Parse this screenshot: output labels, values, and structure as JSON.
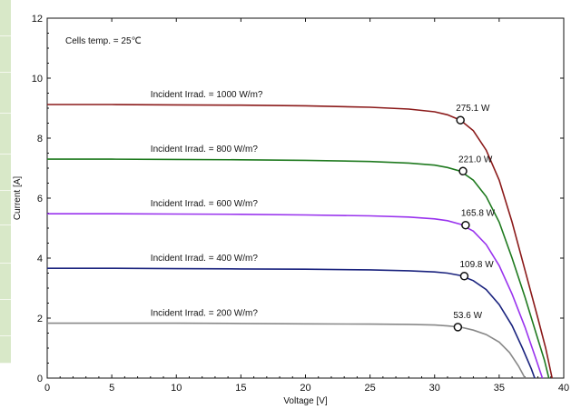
{
  "chart_data": {
    "type": "line",
    "title": "",
    "xlabel": "Voltage [V]",
    "ylabel": "Current [A]",
    "xlim": [
      0,
      40
    ],
    "ylim": [
      0,
      12
    ],
    "xticks": [
      0,
      5,
      10,
      15,
      20,
      25,
      30,
      35,
      40
    ],
    "yticks": [
      0,
      2,
      4,
      6,
      8,
      10,
      12
    ],
    "grid": false,
    "annotation": "Cells temp. = 25℃",
    "series": [
      {
        "name": "Incident Irrad. = 1000 W/m?",
        "color": "#8b1a1a",
        "mpp_label": "275.1 W",
        "mpp": [
          32.0,
          8.6
        ],
        "points": [
          [
            0,
            9.12
          ],
          [
            5,
            9.12
          ],
          [
            10,
            9.11
          ],
          [
            15,
            9.1
          ],
          [
            20,
            9.08
          ],
          [
            25,
            9.03
          ],
          [
            28,
            8.97
          ],
          [
            30,
            8.88
          ],
          [
            31,
            8.78
          ],
          [
            32,
            8.6
          ],
          [
            33,
            8.25
          ],
          [
            34,
            7.6
          ],
          [
            35,
            6.6
          ],
          [
            36,
            5.2
          ],
          [
            37,
            3.6
          ],
          [
            38,
            2.0
          ],
          [
            38.6,
            1.0
          ],
          [
            39.1,
            0
          ]
        ]
      },
      {
        "name": "Incident Irrad. = 800 W/m?",
        "color": "#1f7a1f",
        "mpp_label": "221.0 W",
        "mpp": [
          32.2,
          6.9
        ],
        "points": [
          [
            0,
            7.3
          ],
          [
            5,
            7.3
          ],
          [
            10,
            7.29
          ],
          [
            15,
            7.28
          ],
          [
            20,
            7.26
          ],
          [
            25,
            7.22
          ],
          [
            28,
            7.17
          ],
          [
            30,
            7.1
          ],
          [
            31,
            7.02
          ],
          [
            32,
            6.9
          ],
          [
            33,
            6.6
          ],
          [
            34,
            6.05
          ],
          [
            35,
            5.2
          ],
          [
            36,
            4.0
          ],
          [
            37,
            2.7
          ],
          [
            38,
            1.3
          ],
          [
            38.5,
            0.6
          ],
          [
            38.85,
            0
          ]
        ]
      },
      {
        "name": "Incident Irrad. = 600 W/m?",
        "color": "#9933ee",
        "mpp_label": "165.8 W",
        "mpp": [
          32.4,
          5.1
        ],
        "points": [
          [
            0,
            5.48
          ],
          [
            5,
            5.48
          ],
          [
            10,
            5.47
          ],
          [
            15,
            5.46
          ],
          [
            20,
            5.44
          ],
          [
            25,
            5.41
          ],
          [
            28,
            5.37
          ],
          [
            30,
            5.31
          ],
          [
            31,
            5.25
          ],
          [
            32,
            5.13
          ],
          [
            33,
            4.9
          ],
          [
            34,
            4.45
          ],
          [
            35,
            3.75
          ],
          [
            36,
            2.8
          ],
          [
            37,
            1.7
          ],
          [
            37.8,
            0.7
          ],
          [
            38.35,
            0
          ]
        ]
      },
      {
        "name": "Incident Irrad. = 400 W/m?",
        "color": "#1a237e",
        "mpp_label": "109.8 W",
        "mpp": [
          32.3,
          3.4
        ],
        "points": [
          [
            0,
            3.66
          ],
          [
            5,
            3.66
          ],
          [
            10,
            3.65
          ],
          [
            15,
            3.64
          ],
          [
            20,
            3.63
          ],
          [
            25,
            3.61
          ],
          [
            28,
            3.58
          ],
          [
            30,
            3.54
          ],
          [
            31,
            3.5
          ],
          [
            32,
            3.42
          ],
          [
            33,
            3.25
          ],
          [
            34,
            2.95
          ],
          [
            35,
            2.45
          ],
          [
            36,
            1.75
          ],
          [
            36.8,
            1.0
          ],
          [
            37.5,
            0.3
          ],
          [
            37.75,
            0
          ]
        ]
      },
      {
        "name": "Incident Irrad. = 200 W/m?",
        "color": "#888888",
        "mpp_label": "53.6 W",
        "mpp": [
          31.8,
          1.7
        ],
        "points": [
          [
            0,
            1.83
          ],
          [
            5,
            1.83
          ],
          [
            10,
            1.83
          ],
          [
            15,
            1.82
          ],
          [
            20,
            1.81
          ],
          [
            25,
            1.8
          ],
          [
            28,
            1.79
          ],
          [
            30,
            1.77
          ],
          [
            31,
            1.74
          ],
          [
            32,
            1.7
          ],
          [
            33,
            1.6
          ],
          [
            34,
            1.45
          ],
          [
            35,
            1.2
          ],
          [
            35.8,
            0.85
          ],
          [
            36.5,
            0.4
          ],
          [
            37.0,
            0
          ]
        ]
      }
    ]
  }
}
